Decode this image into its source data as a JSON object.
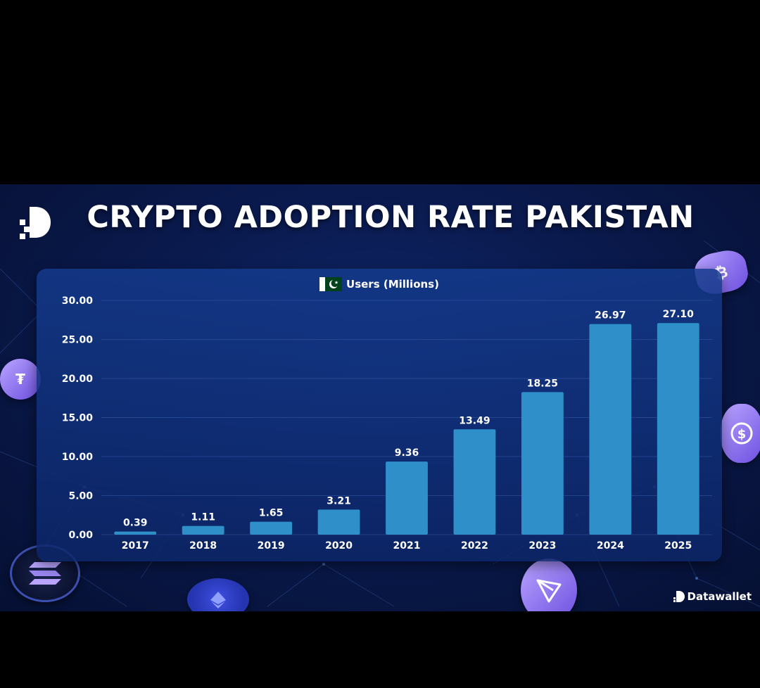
{
  "header": {
    "title": "CRYPTO ADOPTION RATE PAKISTAN"
  },
  "brand": {
    "name": "Datawallet",
    "logo_icon": "datawallet-d-icon"
  },
  "legend": {
    "label": "Users (Millions)",
    "flag_icon": "pakistan-flag-icon"
  },
  "colors": {
    "bar": "#2f8fc9",
    "background": "#0a1a4e",
    "panel": "#12357f",
    "text": "#ffffff"
  },
  "decor_icons": [
    "bitcoin-coin-icon",
    "tether-coin-icon",
    "usdc-coin-icon",
    "solana-coin-icon",
    "ethereum-coin-icon",
    "tron-coin-icon"
  ],
  "chart_data": {
    "type": "bar",
    "categories": [
      "2017",
      "2018",
      "2019",
      "2020",
      "2021",
      "2022",
      "2023",
      "2024",
      "2025"
    ],
    "series": [
      {
        "name": "Users (Millions)",
        "values": [
          0.39,
          1.11,
          1.65,
          3.21,
          9.36,
          13.49,
          18.25,
          26.97,
          27.1
        ]
      }
    ],
    "value_labels": [
      "0.39",
      "1.11",
      "1.65",
      "3.21",
      "9.36",
      "13.49",
      "18.25",
      "26.97",
      "27.10"
    ],
    "y_ticks": [
      "0.00",
      "5.00",
      "10.00",
      "15.00",
      "20.00",
      "25.00",
      "30.00"
    ],
    "title": "CRYPTO ADOPTION RATE PAKISTAN",
    "xlabel": "",
    "ylabel": "",
    "ylim": [
      0,
      30
    ],
    "grid": true,
    "legend_position": "top-center"
  }
}
